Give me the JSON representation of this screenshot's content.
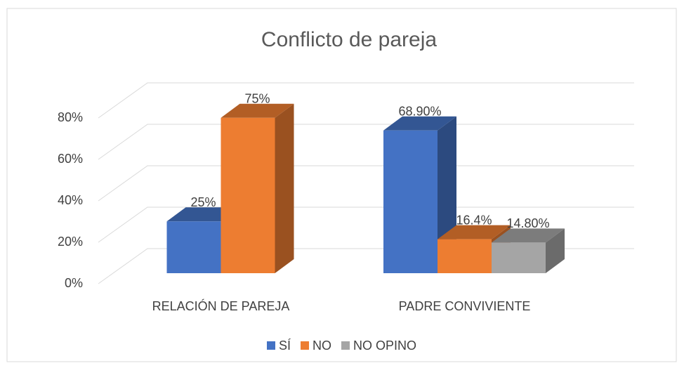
{
  "chart_data": {
    "type": "bar3d",
    "title": "Conflicto de pareja",
    "categories": [
      "RELACIÓN DE PAREJA",
      "PADRE CONVIVIENTE"
    ],
    "series": [
      {
        "name": "SÍ",
        "color": "#4472c4",
        "values": [
          25,
          68.9
        ],
        "value_labels": [
          "25%",
          "68.90%"
        ]
      },
      {
        "name": "NO",
        "color": "#ed7d31",
        "values": [
          75,
          16.4
        ],
        "value_labels": [
          "75%",
          "16.4%"
        ]
      },
      {
        "name": "NO OPINO",
        "color": "#a5a5a5",
        "values": [
          null,
          14.8
        ],
        "value_labels": [
          null,
          "14.80%"
        ]
      }
    ],
    "ylim": [
      0,
      80
    ],
    "yticks": [
      {
        "value": 0,
        "label": "0%"
      },
      {
        "value": 20,
        "label": "20%"
      },
      {
        "value": 40,
        "label": "40%"
      },
      {
        "value": 60,
        "label": "60%"
      },
      {
        "value": 80,
        "label": "80%"
      }
    ],
    "grid": true,
    "legend": "bottom"
  }
}
